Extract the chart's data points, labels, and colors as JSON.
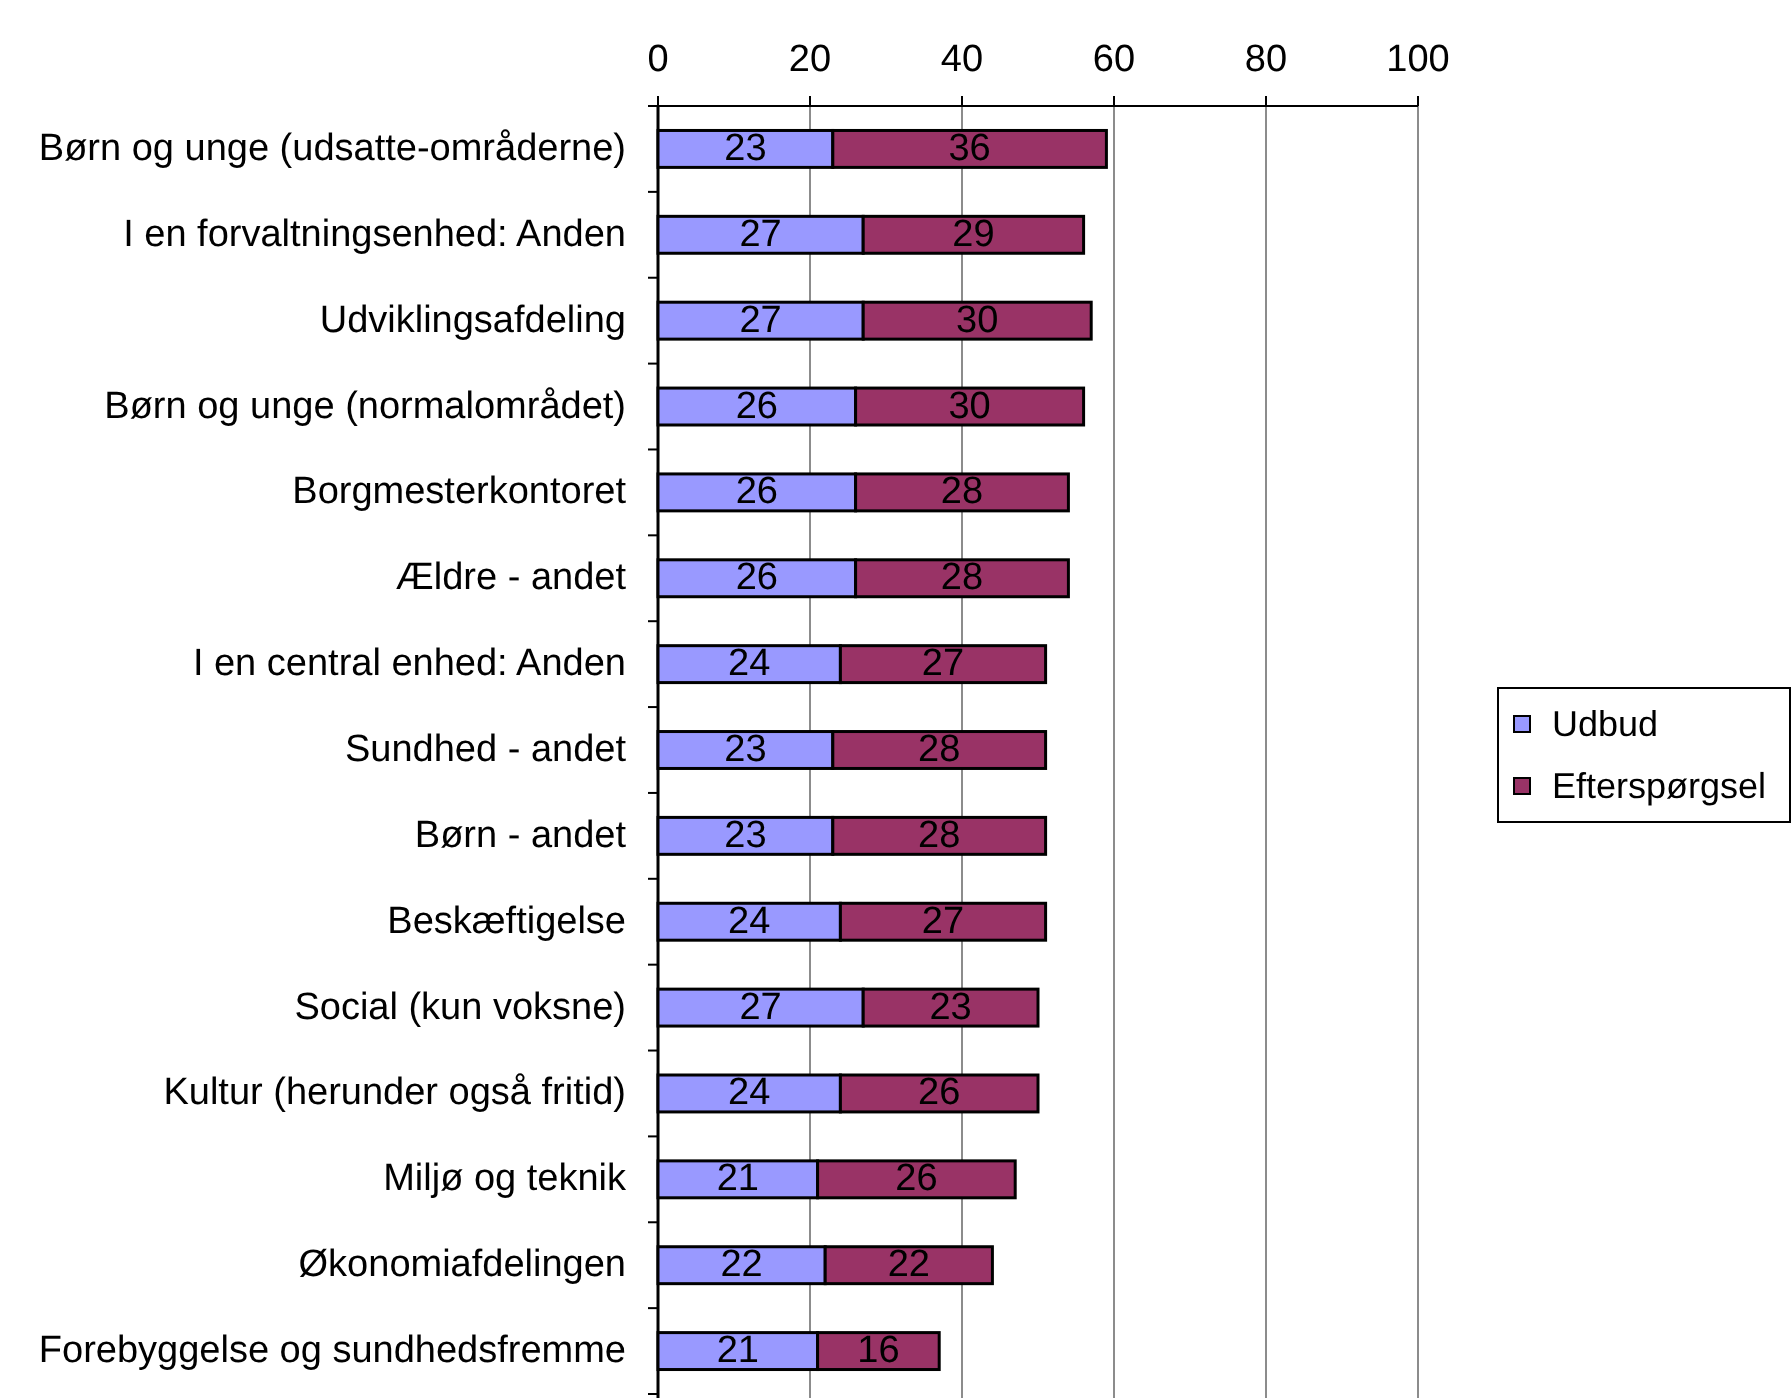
{
  "chart_data": {
    "type": "bar",
    "orientation": "horizontal",
    "stacked": true,
    "categories": [
      "Børn og unge (udsatte-områderne)",
      "I en forvaltningsenhed: Anden",
      "Udviklingsafdeling",
      "Børn og unge (normalområdet)",
      "Borgmesterkontoret",
      "Ældre - andet",
      "I en central enhed: Anden",
      "Sundhed - andet",
      "Børn - andet",
      "Beskæftigelse",
      "Social (kun voksne)",
      "Kultur (herunder også fritid)",
      "Miljø og teknik",
      "Økonomiafdelingen",
      "Forebyggelse og sundhedsfremme"
    ],
    "series": [
      {
        "name": "Udbud",
        "color": "#9999ff",
        "values": [
          23,
          27,
          27,
          26,
          26,
          26,
          24,
          23,
          23,
          24,
          27,
          24,
          21,
          22,
          21
        ]
      },
      {
        "name": "Efterspørgsel",
        "color": "#993366",
        "values": [
          36,
          29,
          30,
          30,
          28,
          28,
          27,
          28,
          28,
          27,
          23,
          26,
          26,
          22,
          16
        ]
      }
    ],
    "xlim": [
      0,
      100
    ],
    "xticks": [
      0,
      20,
      40,
      60,
      80,
      100
    ],
    "grid": "x",
    "legend": "right",
    "data_labels": true
  }
}
